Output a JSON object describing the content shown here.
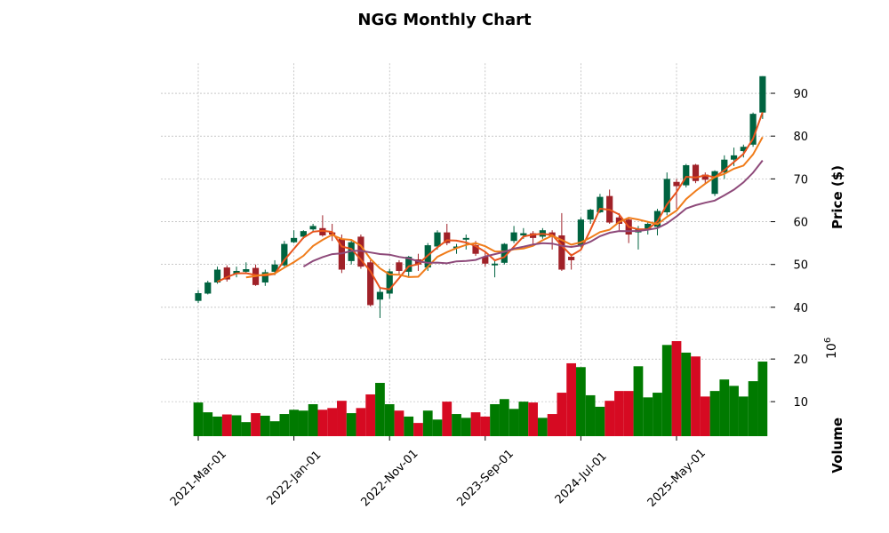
{
  "chart_data": {
    "type": "candlestick",
    "title": "NGG Monthly Chart",
    "categories": [
      "2021-Mar-01",
      null,
      null,
      null,
      null,
      null,
      null,
      null,
      null,
      null,
      "2022-Jan-01",
      null,
      null,
      null,
      null,
      null,
      null,
      null,
      null,
      null,
      "2022-Nov-01",
      null,
      null,
      null,
      null,
      null,
      null,
      null,
      null,
      null,
      "2023-Sep-01",
      null,
      null,
      null,
      null,
      null,
      null,
      null,
      null,
      null,
      "2024-Jul-01",
      null,
      null,
      null,
      null,
      null,
      null,
      null,
      null,
      null,
      "2025-May-01",
      null,
      null,
      null,
      null,
      null,
      null,
      null,
      null,
      null
    ],
    "open": [
      41.5,
      43.2,
      45.8,
      49.3,
      47.8,
      48.3,
      49.2,
      45.8,
      48.3,
      49.8,
      55.2,
      56.5,
      58.2,
      58.5,
      57.5,
      56.0,
      50.8,
      56.5,
      50.5,
      41.8,
      43.2,
      50.5,
      48.3,
      51.2,
      49.3,
      54.2,
      57.5,
      53.8,
      55.8,
      54.5,
      51.8,
      49.8,
      50.4,
      55.5,
      56.8,
      57.3,
      56.5,
      57.5,
      56.8,
      51.8,
      54.5,
      60.5,
      62.2,
      66.0,
      61.0,
      60.5,
      57.5,
      58.3,
      58.8,
      62.2,
      69.3,
      68.5,
      73.3,
      71.0,
      66.5,
      71.5,
      74.5,
      76.5,
      78.0,
      85.5
    ],
    "high": [
      44.0,
      46.2,
      49.5,
      49.8,
      49.5,
      50.5,
      50.0,
      48.8,
      51.0,
      55.5,
      58.0,
      58.0,
      59.5,
      61.5,
      59.5,
      57.0,
      55.8,
      57.0,
      51.0,
      44.5,
      49.0,
      51.0,
      52.0,
      52.5,
      55.0,
      58.0,
      59.5,
      54.8,
      57.0,
      55.5,
      53.0,
      51.0,
      55.0,
      59.0,
      58.5,
      57.8,
      58.5,
      58.0,
      62.0,
      52.5,
      61.0,
      63.0,
      66.5,
      67.5,
      62.0,
      61.0,
      59.0,
      60.0,
      63.0,
      71.5,
      70.0,
      73.5,
      73.5,
      71.5,
      72.0,
      75.5,
      77.3,
      78.0,
      85.5,
      94.0
    ],
    "low": [
      41.0,
      43.0,
      45.5,
      46.0,
      47.0,
      47.8,
      45.0,
      45.0,
      47.5,
      49.5,
      55.0,
      56.0,
      57.5,
      56.5,
      55.5,
      48.0,
      50.0,
      49.0,
      40.2,
      37.5,
      42.0,
      47.5,
      47.0,
      48.5,
      48.5,
      53.5,
      54.5,
      52.5,
      53.5,
      52.0,
      49.5,
      47.0,
      50.0,
      55.0,
      56.0,
      54.5,
      56.0,
      53.5,
      48.5,
      48.8,
      54.0,
      59.5,
      62.0,
      59.5,
      58.0,
      55.0,
      53.5,
      57.0,
      56.8,
      61.5,
      63.0,
      68.0,
      69.0,
      69.0,
      66.0,
      70.0,
      73.0,
      75.0,
      77.5,
      84.0
    ],
    "close": [
      43.3,
      45.8,
      48.8,
      46.5,
      48.5,
      48.9,
      45.2,
      48.2,
      50.0,
      54.8,
      56.2,
      57.8,
      59.0,
      56.8,
      57.0,
      48.8,
      55.2,
      49.5,
      40.5,
      43.6,
      48.4,
      48.5,
      51.8,
      50.0,
      54.5,
      57.5,
      55.0,
      54.2,
      56.2,
      52.5,
      50.2,
      50.2,
      54.8,
      57.5,
      57.3,
      56.2,
      58.0,
      56.5,
      48.8,
      51.0,
      60.5,
      62.8,
      65.8,
      59.8,
      59.5,
      57.0,
      58.2,
      59.5,
      62.5,
      70.0,
      68.3,
      73.2,
      69.5,
      69.8,
      71.8,
      74.5,
      75.5,
      77.5,
      85.2,
      94.0
    ],
    "volume": [
      9.8,
      7.5,
      6.5,
      7.0,
      6.8,
      5.2,
      7.3,
      6.7,
      5.4,
      7.1,
      8.1,
      7.9,
      9.4,
      8.1,
      8.5,
      10.2,
      7.3,
      8.5,
      11.7,
      14.4,
      9.4,
      7.9,
      6.5,
      5.0,
      7.9,
      5.8,
      10.0,
      7.1,
      6.2,
      7.5,
      6.5,
      9.4,
      10.6,
      8.3,
      10.0,
      9.8,
      6.2,
      7.1,
      12.1,
      19.0,
      18.1,
      11.5,
      8.8,
      10.2,
      12.5,
      12.5,
      18.3,
      11.0,
      12.1,
      23.3,
      24.2,
      21.5,
      20.6,
      11.2,
      12.5,
      15.2,
      13.7,
      11.2,
      14.8,
      19.4
    ],
    "ylim": [
      35,
      97
    ],
    "yticks": [
      40,
      50,
      60,
      70,
      80,
      90
    ],
    "ylabel": "Price ($)",
    "volume_ylim": [
      1.9,
      26.7
    ],
    "volume_yticks": [
      10,
      20
    ],
    "volume_ylabel": "Volume",
    "volume_exponent_base": "10",
    "volume_exponent": "6",
    "mav": [
      3,
      6,
      12
    ],
    "mav_colors": [
      "#e8541c",
      "#f07c1a",
      "#8e4a7a"
    ],
    "up_color": "#006340",
    "down_color": "#a02128",
    "volume_up_color": "#007a00",
    "volume_down_color": "#d60a22",
    "grid": true
  }
}
